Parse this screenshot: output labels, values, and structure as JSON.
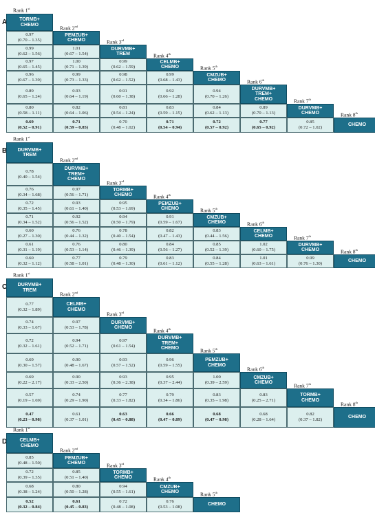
{
  "panels": [
    {
      "label": "A",
      "ranks": [
        "Rank 1st",
        "Rank 2nd",
        "Rank 3rd",
        "Rank 4th",
        "Rank 5th",
        "Rank 6th",
        "Rank 7th",
        "Rank 8th"
      ],
      "treatments": [
        [
          "TORMB+",
          "CHEMO"
        ],
        [
          "PEMZUB+",
          "CHEMO"
        ],
        [
          "DURVMB+",
          "TREM"
        ],
        [
          "CELMB+",
          "CHEMO"
        ],
        [
          "CMZUB+",
          "CHEMO"
        ],
        [
          "DURVMB+",
          "TREM+",
          "CHEMO"
        ],
        [
          "DURVMB+",
          "CHEMO"
        ],
        [
          "CHEMO"
        ]
      ],
      "rows": [
        [],
        [
          [
            "0.97",
            "(0.70 – 1.35)"
          ]
        ],
        [
          [
            "0.99",
            "(0.62 – 1.56)"
          ],
          [
            "1.01",
            "(0.67 – 1.54)"
          ]
        ],
        [
          [
            "0.97",
            "(0.65 – 1.45)"
          ],
          [
            "1.00",
            "(0.71 – 1.39)"
          ],
          [
            "0.99",
            "(0.62 – 1.59)"
          ]
        ],
        [
          [
            "0.96",
            "(0.67 – 1.39)"
          ],
          [
            "0.99",
            "(0.73 – 1.33)"
          ],
          [
            "0.98",
            "(0.62 – 1.52)"
          ],
          [
            "0.99",
            "(0.68 – 1.43)"
          ]
        ],
        [
          [
            "0.89",
            "(0.65 – 1.24)"
          ],
          [
            "0.93",
            "(0.64 – 1.19)"
          ],
          [
            "0.91",
            "(0.60 – 1.38)"
          ],
          [
            "0.92",
            "(0.66 – 1.28)"
          ],
          [
            "0.94",
            "(0.70 – 1.26)"
          ]
        ],
        [
          [
            "0.80",
            "(0.58 – 1.11)"
          ],
          [
            "0.82",
            "(0.64 – 1.06)"
          ],
          [
            "0.81",
            "(0.54 – 1.24)"
          ],
          [
            "0.83",
            "(0.59 – 1.15)"
          ],
          [
            "0.84",
            "(0.62 – 1.13)"
          ],
          [
            "0.89",
            "(0.70 – 1.13)"
          ]
        ],
        [
          [
            "0.69",
            "(0.52 – 0.91)"
          ],
          [
            "0.71",
            "(0.59 – 0.85)"
          ],
          [
            "0.70",
            "(0.48 – 1.02)"
          ],
          [
            "0.71",
            "(0.54 – 0.94)"
          ],
          [
            "0.72",
            "(0.57 – 0.92)"
          ],
          [
            "0.77",
            "(0.65 – 0.92)"
          ],
          [
            "0.85",
            "(0.72 – 1.02)"
          ]
        ]
      ],
      "bold": [
        [
          7,
          0
        ],
        [
          7,
          1
        ],
        [
          7,
          3
        ],
        [
          7,
          4
        ],
        [
          7,
          5
        ]
      ]
    },
    {
      "label": "B",
      "ranks": [
        "Rank 1st",
        "Rank 2nd",
        "Rank 3rd",
        "Rank 4th",
        "Rank 5th",
        "Rank 6th",
        "Rank 7th",
        "Rank 8th"
      ],
      "treatments": [
        [
          "DURVMB+",
          "TREM"
        ],
        [
          "DURVMB+",
          "TREM+",
          "CHEMO"
        ],
        [
          "TORMB+",
          "CHEMO"
        ],
        [
          "PEMZUB+",
          "CHEMO"
        ],
        [
          "CMZUB+",
          "CHEMO"
        ],
        [
          "CELMB+",
          "CHEMO"
        ],
        [
          "DURVMB+",
          "CHEMO"
        ],
        [
          "CHEMO"
        ]
      ],
      "rows": [
        [],
        [
          [
            "0.78",
            "(0.40 – 1.54)"
          ]
        ],
        [
          [
            "0.76",
            "(0.34 – 1.68)"
          ],
          [
            "0.97",
            "(0.56 – 1.71)"
          ]
        ],
        [
          [
            "0.72",
            "(0.35 – 1.45)"
          ],
          [
            "0.93",
            "(0.61 – 1.40)"
          ],
          [
            "0.95",
            "(0.53 – 1.69)"
          ]
        ],
        [
          [
            "0.71",
            "(0.34 – 1.52)"
          ],
          [
            "0.92",
            "(0.56 – 1.52)"
          ],
          [
            "0.94",
            "(0.50 – 1.79)"
          ],
          [
            "0.91",
            "(0.59 – 1.67)"
          ]
        ],
        [
          [
            "0.60",
            "(0.27 – 1.30)"
          ],
          [
            "0.76",
            "(0.44 – 1.32)"
          ],
          [
            "0.78",
            "(0.40 – 1.54)"
          ],
          [
            "0.82",
            "(0.47 – 1.43)"
          ],
          [
            "0.83",
            "(0.44 – 1.56)"
          ]
        ],
        [
          [
            "0.61",
            "(0.31 – 1.19)"
          ],
          [
            "0.76",
            "(0.53 – 1.14)"
          ],
          [
            "0.80",
            "(0.46 – 1.39)"
          ],
          [
            "0.84",
            "(0.56 – 1.27)"
          ],
          [
            "0.85",
            "(0.52 – 1.39)"
          ],
          [
            "1.02",
            "(0.60 – 1.75)"
          ]
        ],
        [
          [
            "0.60",
            "(0.32 – 1.12)"
          ],
          [
            "0.77",
            "(0.58 – 1.01)"
          ],
          [
            "0.79",
            "(0.48 – 1.30)"
          ],
          [
            "0.83",
            "(0.61 – 1.12)"
          ],
          [
            "0.84",
            "(0.55 – 1.28)"
          ],
          [
            "1.01",
            "(0.63 – 1.61)"
          ],
          [
            "0.99",
            "(0.76 – 1.30)"
          ]
        ]
      ],
      "bold": []
    },
    {
      "label": "C",
      "ranks": [
        "Rank 1st",
        "Rank 2nd",
        "Rank 3rd",
        "Rank 4th",
        "Rank 5th",
        "Rank 6th",
        "Rank 7th",
        "Rank 8th"
      ],
      "treatments": [
        [
          "DURVMB+",
          "TREM"
        ],
        [
          "CELMB+",
          "CHEMO"
        ],
        [
          "DURVMB+",
          "CHEMO"
        ],
        [
          "DURVMB+",
          "TREM+",
          "CHEMO"
        ],
        [
          "PEMZUB+",
          "CHEMO"
        ],
        [
          "CMZUB+",
          "CHEMO"
        ],
        [
          "TORMB+",
          "CHEMO"
        ],
        [
          "CHEMO"
        ]
      ],
      "rows": [
        [],
        [
          [
            "0.77",
            "(0.32 – 1.89)"
          ]
        ],
        [
          [
            "0.74",
            "(0.33 – 1.67)"
          ],
          [
            "0.97",
            "(0.53 – 1.78)"
          ]
        ],
        [
          [
            "0.72",
            "(0.32 – 1.61)"
          ],
          [
            "0.94",
            "(0.52 – 1.71)"
          ],
          [
            "0.97",
            "(0.61 – 1.54)"
          ]
        ],
        [
          [
            "0.69",
            "(0.30 – 1.57)"
          ],
          [
            "0.90",
            "(0.48 – 1.67)"
          ],
          [
            "0.93",
            "(0.57 – 1.52)"
          ],
          [
            "0.96",
            "(0.59 – 1.55)"
          ]
        ],
        [
          [
            "0.69",
            "(0.22 – 2.17)"
          ],
          [
            "0.90",
            "(0.33 – 2.50)"
          ],
          [
            "0.93",
            "(0.36 – 2.38)"
          ],
          [
            "0.95",
            "(0.37 – 2.44)"
          ],
          [
            "1.00",
            "(0.39 – 2.59)"
          ]
        ],
        [
          [
            "0.57",
            "(0.19 – 1.69)"
          ],
          [
            "0.74",
            "(0.29 – 1.90)"
          ],
          [
            "0.77",
            "(0.33 – 1.82)"
          ],
          [
            "0.79",
            "(0.34 – 1.86)"
          ],
          [
            "0.83",
            "(0.35 – 1.98)"
          ],
          [
            "0.83",
            "(0.25 – 2.71)"
          ]
        ],
        [
          [
            "0.47",
            "(0.23 – 0.98)"
          ],
          [
            "0.61",
            "(0.37 – 1.01)"
          ],
          [
            "0.63",
            "(0.45 – 0.88)"
          ],
          [
            "0.66",
            "(0.47 – 0.89)"
          ],
          [
            "0.68",
            "(0.47 – 0.98)"
          ],
          [
            "0.68",
            "(0.28 – 1.64)"
          ],
          [
            "0.82",
            "(0.37 – 1.82)"
          ]
        ]
      ],
      "bold": [
        [
          7,
          0
        ],
        [
          7,
          2
        ],
        [
          7,
          3
        ],
        [
          7,
          4
        ]
      ]
    },
    {
      "label": "D",
      "ranks": [
        "Rank 1st",
        "Rank 2nd",
        "Rank 3rd",
        "Rank 4th",
        "Rank 5th"
      ],
      "treatments": [
        [
          "CELMB+",
          "CHEMO"
        ],
        [
          "PEMZUB+",
          "CHEMO"
        ],
        [
          "TORMB+",
          "CHEMO"
        ],
        [
          "CMZUB+",
          "CHEMO"
        ],
        [
          "CHEMO"
        ]
      ],
      "rows": [
        [],
        [
          [
            "0.85",
            "(0.48 – 1.50)"
          ]
        ],
        [
          [
            "0.72",
            "(0.39 – 1.35)"
          ],
          [
            "0.85",
            "(0.51 – 1.40)"
          ]
        ],
        [
          [
            "0.68",
            "(0.38 – 1.24)"
          ],
          [
            "0.80",
            "(0.50 – 1.28)"
          ],
          [
            "0.94",
            "(0.55 – 1.61)"
          ]
        ],
        [
          [
            "0.52",
            "(0.32 – 0.84)"
          ],
          [
            "0.61",
            "(0.45 – 0.83)"
          ],
          [
            "0.72",
            "(0.48 – 1.08)"
          ],
          [
            "0.76",
            "(0.53 – 1.08)"
          ]
        ]
      ],
      "bold": [
        [
          4,
          0
        ],
        [
          4,
          1
        ]
      ]
    }
  ]
}
